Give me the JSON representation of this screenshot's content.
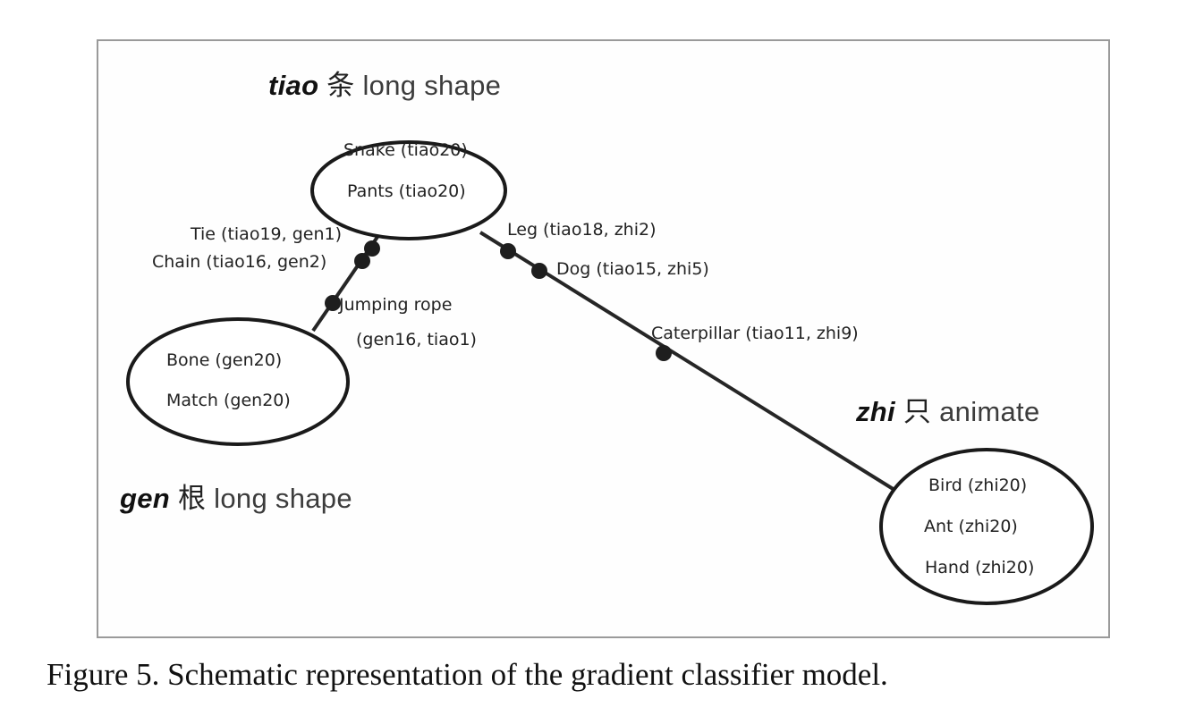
{
  "categories": {
    "tiao": {
      "classifier": "tiao",
      "character": "条",
      "meaning": "long shape",
      "members": [
        "Snake (tiao20)",
        "Pants (tiao20)"
      ]
    },
    "gen": {
      "classifier": "gen",
      "character": "根",
      "meaning": "long shape",
      "members": [
        "Bone (gen20)",
        "Match (gen20)"
      ]
    },
    "zhi": {
      "classifier": "zhi",
      "character": "只",
      "meaning": "animate",
      "members": [
        "Bird (zhi20)",
        "Ant (zhi20)",
        "Hand (zhi20)"
      ]
    }
  },
  "links": {
    "tiao_gen": [
      {
        "label": "Tie (tiao19, gen1)"
      },
      {
        "label": "Chain (tiao16, gen2)"
      },
      {
        "label": "Jumping rope",
        "label2": "(gen16, tiao1)"
      }
    ],
    "tiao_zhi": [
      {
        "label": "Leg (tiao18, zhi2)"
      },
      {
        "label": "Dog (tiao15, zhi5)"
      },
      {
        "label": "Caterpillar (tiao11, zhi9)"
      }
    ]
  },
  "caption": "Figure 5. Schematic representation of the gradient classifier model.",
  "colors": {
    "line": "#262626",
    "node": "#1e1e1e",
    "frame": "#9a9a9a"
  }
}
